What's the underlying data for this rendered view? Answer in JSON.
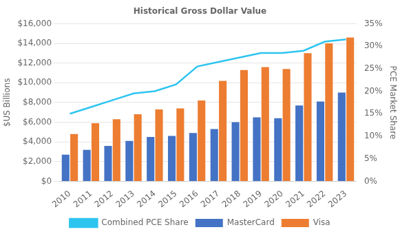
{
  "chart_data": {
    "type": "bar",
    "title": "Historical Gross Dollar Value",
    "categories": [
      "2010",
      "2011",
      "2012",
      "2013",
      "2014",
      "2015",
      "2016",
      "2017",
      "2018",
      "2019",
      "2020",
      "2021",
      "2022",
      "2023"
    ],
    "series": [
      {
        "name": "MasterCard",
        "color": "#4472C4",
        "values": [
          2700,
          3200,
          3600,
          4100,
          4500,
          4600,
          4900,
          5300,
          6000,
          6500,
          6400,
          7700,
          8100,
          9000
        ]
      },
      {
        "name": "Visa",
        "color": "#ED7D31",
        "values": [
          4800,
          5900,
          6300,
          6800,
          7300,
          7400,
          8200,
          10200,
          11300,
          11600,
          11400,
          13000,
          14000,
          14600
        ]
      },
      {
        "name": "Combined PCE Share",
        "type": "line",
        "axis": "y2",
        "color": "#2EC4F0",
        "values": [
          15.0,
          16.5,
          18.0,
          19.5,
          20.0,
          21.5,
          25.5,
          26.5,
          27.5,
          28.5,
          28.5,
          29.0,
          31.0,
          31.5
        ]
      }
    ],
    "ylabel": "$US Billions",
    "y2label": "PCE Market Share",
    "ylim": [
      0,
      16000
    ],
    "yticks": [
      {
        "value": 0,
        "label": "$0"
      },
      {
        "value": 2000,
        "label": "$2,000"
      },
      {
        "value": 4000,
        "label": "$4,000"
      },
      {
        "value": 6000,
        "label": "$6,000"
      },
      {
        "value": 8000,
        "label": "$8,000"
      },
      {
        "value": 10000,
        "label": "$10,000"
      },
      {
        "value": 12000,
        "label": "$12,000"
      },
      {
        "value": 14000,
        "label": "$14,000"
      },
      {
        "value": 16000,
        "label": "$16,000"
      }
    ],
    "y2lim": [
      0,
      35
    ],
    "y2ticks": [
      {
        "value": 0,
        "label": "0%"
      },
      {
        "value": 5,
        "label": "5%"
      },
      {
        "value": 10,
        "label": "10%"
      },
      {
        "value": 15,
        "label": "15%"
      },
      {
        "value": 20,
        "label": "20%"
      },
      {
        "value": 25,
        "label": "25%"
      },
      {
        "value": 30,
        "label": "30%"
      },
      {
        "value": 35,
        "label": "35%"
      }
    ],
    "grid": true,
    "legend": "bottom"
  }
}
